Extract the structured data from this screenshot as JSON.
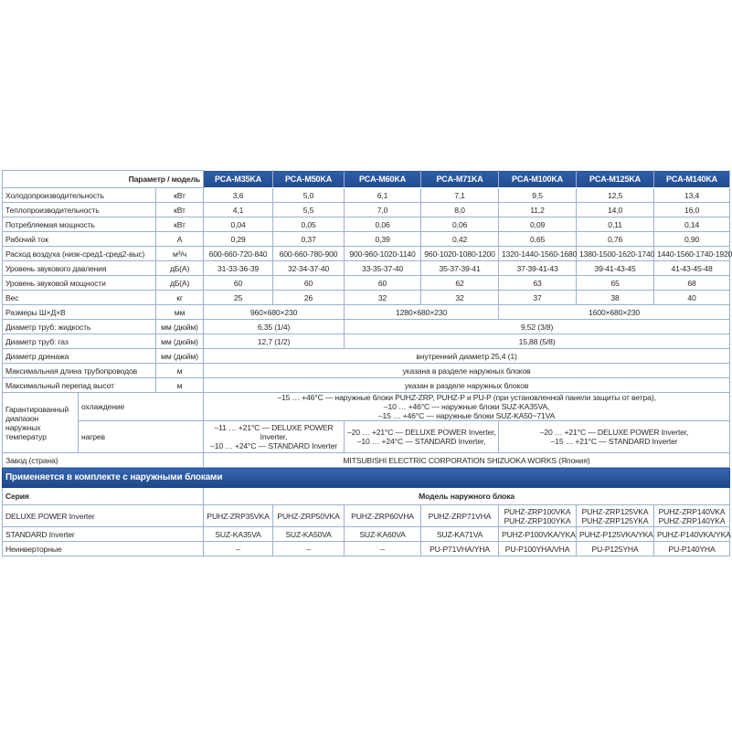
{
  "header": {
    "param_label": "Параметр / модель",
    "models": [
      "PCA-M35KA",
      "PCA-M50KA",
      "PCA-M60KA",
      "PCA-M71KA",
      "PCA-M100KA",
      "PCA-M125KA",
      "PCA-M140KA"
    ]
  },
  "rows": [
    {
      "label": "Холодопроизводительность",
      "unit": "кВт",
      "cells": [
        {
          "t": "3,6"
        },
        {
          "t": "5,0"
        },
        {
          "t": "6,1"
        },
        {
          "t": "7,1"
        },
        {
          "t": "9,5"
        },
        {
          "t": "12,5"
        },
        {
          "t": "13,4"
        }
      ]
    },
    {
      "label": "Теплопроизводительность",
      "unit": "кВт",
      "cells": [
        {
          "t": "4,1"
        },
        {
          "t": "5,5"
        },
        {
          "t": "7,0"
        },
        {
          "t": "8,0"
        },
        {
          "t": "11,2"
        },
        {
          "t": "14,0"
        },
        {
          "t": "16,0"
        }
      ]
    },
    {
      "label": "Потребляемая мощность",
      "unit": "кВт",
      "cells": [
        {
          "t": "0,04"
        },
        {
          "t": "0,05"
        },
        {
          "t": "0,06"
        },
        {
          "t": "0,06"
        },
        {
          "t": "0,09"
        },
        {
          "t": "0,11"
        },
        {
          "t": "0,14"
        }
      ]
    },
    {
      "label": "Рабочий ток",
      "unit": "А",
      "cells": [
        {
          "t": "0,29"
        },
        {
          "t": "0,37"
        },
        {
          "t": "0,39"
        },
        {
          "t": "0,42"
        },
        {
          "t": "0,65"
        },
        {
          "t": "0,76"
        },
        {
          "t": "0,90"
        }
      ]
    },
    {
      "label": "Расход воздуха (низк-сред1-сред2-выс)",
      "unit": "м³/ч",
      "cells": [
        {
          "t": "600-660-720-840"
        },
        {
          "t": "600-660-780-900"
        },
        {
          "t": "900-960-1020-1140"
        },
        {
          "t": "960-1020-1080-1200"
        },
        {
          "t": "1320-1440-1560-1680"
        },
        {
          "t": "1380-1500-1620-1740"
        },
        {
          "t": "1440-1560-1740-1920"
        }
      ]
    },
    {
      "label": "Уровень звукового давления",
      "unit": "дБ(А)",
      "cells": [
        {
          "t": "31-33-36-39"
        },
        {
          "t": "32-34-37-40"
        },
        {
          "t": "33-35-37-40"
        },
        {
          "t": "35-37-39-41"
        },
        {
          "t": "37-39-41-43"
        },
        {
          "t": "39-41-43-45"
        },
        {
          "t": "41-43-45-48"
        }
      ]
    },
    {
      "label": "Уровень звуковой мощности",
      "unit": "дБ(А)",
      "cells": [
        {
          "t": "60"
        },
        {
          "t": "60"
        },
        {
          "t": "60"
        },
        {
          "t": "62"
        },
        {
          "t": "63"
        },
        {
          "t": "65"
        },
        {
          "t": "68"
        }
      ]
    },
    {
      "label": "Вес",
      "unit": "кг",
      "cells": [
        {
          "t": "25"
        },
        {
          "t": "26"
        },
        {
          "t": "32"
        },
        {
          "t": "32"
        },
        {
          "t": "37"
        },
        {
          "t": "38"
        },
        {
          "t": "40"
        }
      ]
    },
    {
      "label": "Размеры Ш×Д×В",
      "unit": "мм",
      "cells": [
        {
          "t": "960×680×230",
          "s": 2
        },
        {
          "t": "1280×680×230",
          "s": 2
        },
        {
          "t": "1600×680×230",
          "s": 3
        }
      ]
    },
    {
      "label": "Диаметр труб: жидкость",
      "unit": "мм (дюйм)",
      "cells": [
        {
          "t": "6,35 (1/4)",
          "s": 2
        },
        {
          "t": "9,52 (3/8)",
          "s": 5
        }
      ]
    },
    {
      "label": "Диаметр труб: газ",
      "unit": "мм (дюйм)",
      "cells": [
        {
          "t": "12,7 (1/2)",
          "s": 2
        },
        {
          "t": "15,88 (5/8)",
          "s": 5
        }
      ]
    },
    {
      "label": "Диаметр дренажа",
      "unit": "мм (дюйм)",
      "cells": [
        {
          "t": "внутренний диаметр 25,4 (1)",
          "s": 7
        }
      ]
    },
    {
      "label": "Максимальная длина трубопроводов",
      "unit": "м",
      "cells": [
        {
          "t": "указана в разделе наружных блоков",
          "s": 7
        }
      ]
    },
    {
      "label": "Максимальный перепад высот",
      "unit": "м",
      "cells": [
        {
          "t": "указан в разделе наружных блоков",
          "s": 7
        }
      ]
    }
  ],
  "temperature": {
    "label": "Гарантированный диапазон наружных температур",
    "cooling_label": "охлаждение",
    "cooling_lines": [
      "–15 … +46°C — наружные блоки PUHZ-ZRP, PUHZ-P и PU-P (при установленной панели защиты от ветра),",
      "–10 … +46°C — наружные блоки SUZ-KA35VA,",
      "–15 … +46°C — наружные блоки SUZ-KA50~71VA"
    ],
    "heating_label": "нагрев",
    "heating": [
      {
        "lines": [
          "–11 … +21°C — DELUXE POWER",
          "Inverter,",
          "–10 … +24°C — STANDARD Inverter"
        ]
      },
      {
        "lines": [
          "–20 … +21°C — DELUXE POWER Inverter,",
          "–10 … +24°C — STANDARD Inverter,"
        ]
      },
      {
        "lines": [
          "–20 … +21°C — DELUXE POWER Inverter,",
          "–15 … +21°C — STANDARD Inverter"
        ]
      }
    ]
  },
  "factory": {
    "label": "Завод (страна)",
    "value": "MITSUBISHI ELECTRIC CORPORATION SHIZUOKA WORKS (Япония)"
  },
  "outdoor": {
    "title": "Применяется в комплекте с наружными блоками",
    "series_label": "Серия",
    "model_label": "Модель наружного блока",
    "rows": [
      {
        "label": "DELUXE POWER Inverter",
        "cells": [
          "PUHZ-ZRP35VKA",
          "PUHZ-ZRP50VKA",
          "PUHZ-ZRP60VHA",
          "PUHZ-ZRP71VHA",
          "PUHZ-ZRP100VKA\nPUHZ-ZRP100YKA",
          "PUHZ-ZRP125VKA\nPUHZ-ZRP125YKA",
          "PUHZ-ZRP140VKA\nPUHZ-ZRP140YKA"
        ]
      },
      {
        "label": "STANDARD Inverter",
        "cells": [
          "SUZ-KA35VA",
          "SUZ-KA50VA",
          "SUZ-KA60VA",
          "SUZ-KA71VA",
          "PUHZ-P100VKA/YKA",
          "PUHZ-P125VKA/YKA",
          "PUHZ-P140VKA/YKA"
        ]
      },
      {
        "label": "Неинверторные",
        "cells": [
          "–",
          "–",
          "–",
          "PU-P71VHA/YHA",
          "PU-P100YHA/VHA",
          "PU-P125YHA",
          "PU-P140YHA"
        ]
      }
    ]
  },
  "colors": {
    "header_blue": "#2a55a0",
    "border": "#9db0d2"
  }
}
